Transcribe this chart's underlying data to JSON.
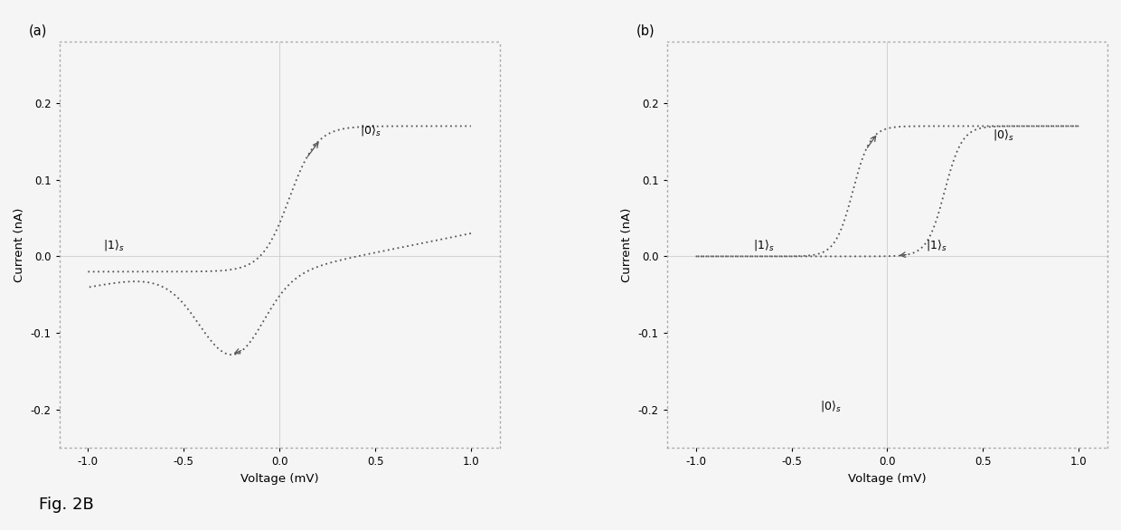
{
  "fig_label": "Fig. 2B",
  "panel_a_label": "(a)",
  "panel_b_label": "(b)",
  "xlabel": "Voltage (mV)",
  "ylabel": "Current (nA)",
  "xlim": [
    -1.15,
    1.15
  ],
  "ylim": [
    -0.25,
    0.28
  ],
  "xticks": [
    -1.0,
    -0.5,
    0.0,
    0.5,
    1.0
  ],
  "yticks": [
    -0.2,
    -0.1,
    0.0,
    0.1,
    0.2
  ],
  "line_color": "#555555",
  "line_width": 1.3,
  "background_color": "#f5f5f5",
  "spine_color": "#aaaaaa"
}
